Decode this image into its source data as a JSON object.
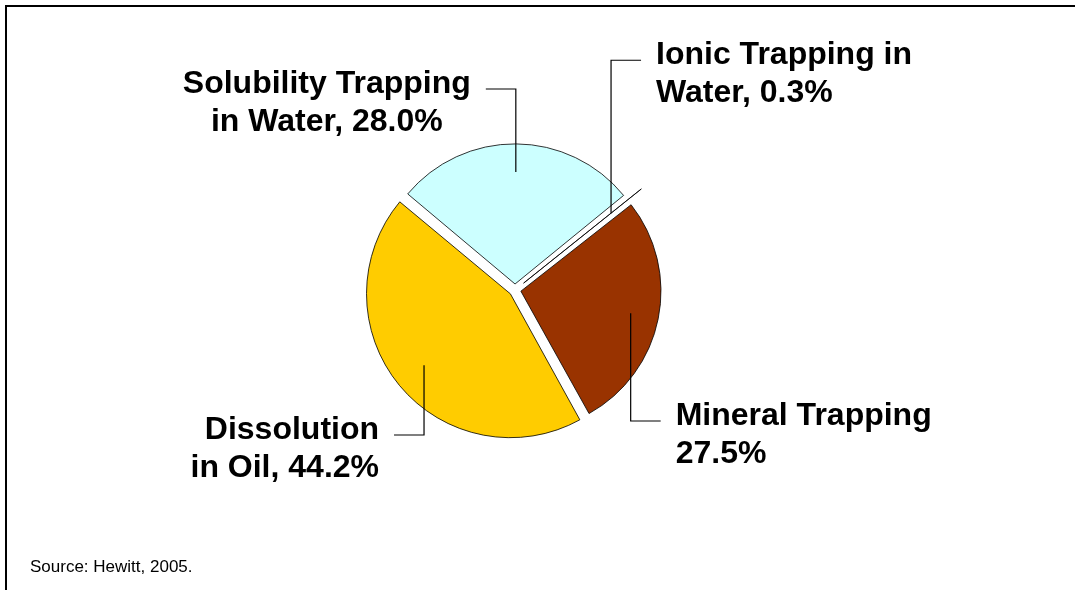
{
  "chart_data": {
    "type": "pie",
    "categories": [
      "Solubility Trapping in Water",
      "Ionic Trapping in Water",
      "Mineral Trapping",
      "Dissolution in Oil"
    ],
    "values": [
      28.0,
      0.3,
      27.5,
      44.2
    ],
    "colors": [
      "#ccffff",
      "#008080",
      "#993300",
      "#ffcc00"
    ],
    "value_labels": [
      "28.0%",
      "0.3%",
      "27.5%",
      "44.2%"
    ],
    "annotations": [
      "Source: Hewitt, 2005."
    ]
  }
}
